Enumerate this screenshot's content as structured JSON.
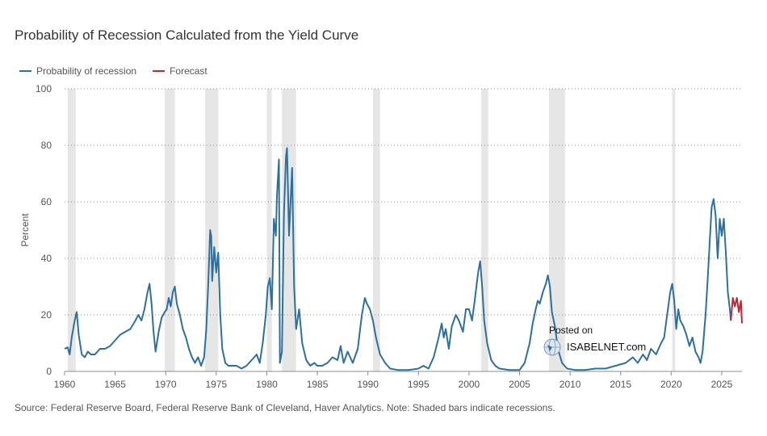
{
  "title": "Probability of Recession Calculated from the Yield Curve",
  "legend": [
    {
      "label": "Probability of recession",
      "color": "#2e6f9e"
    },
    {
      "label": "Forecast",
      "color": "#c1272d"
    }
  ],
  "source": "Source: Federal Reserve Board, Federal Reserve Bank of Cleveland, Haver Analytics. Note: Shaded bars indicate recessions.",
  "watermark": {
    "posted": "Posted on",
    "site": "ISABELNET.com"
  },
  "chart_data": {
    "type": "line",
    "title": "Probability of Recession Calculated from the Yield Curve",
    "ylabel": "Percent",
    "xlabel": "",
    "xlim": [
      1960,
      2027
    ],
    "ylim": [
      0,
      100
    ],
    "yticks": [
      0,
      20,
      40,
      60,
      80,
      100
    ],
    "xticks": [
      1960,
      1965,
      1970,
      1975,
      1980,
      1985,
      1990,
      1995,
      2000,
      2005,
      2010,
      2015,
      2020,
      2025
    ],
    "grid": "horizontal dotted",
    "recessions": [
      [
        1960.3,
        1961.1
      ],
      [
        1969.9,
        1970.9
      ],
      [
        1973.9,
        1975.2
      ],
      [
        1980.0,
        1980.5
      ],
      [
        1981.5,
        1982.9
      ],
      [
        1990.5,
        1991.2
      ],
      [
        2001.2,
        2001.9
      ],
      [
        2007.9,
        2009.5
      ],
      [
        2020.1,
        2020.4
      ]
    ],
    "series": [
      {
        "name": "Probability of recession",
        "color": "#2e6f9e",
        "points": [
          [
            1960.0,
            8
          ],
          [
            1960.3,
            8.5
          ],
          [
            1960.5,
            6
          ],
          [
            1960.7,
            12
          ],
          [
            1961.0,
            18
          ],
          [
            1961.2,
            21
          ],
          [
            1961.4,
            13
          ],
          [
            1961.7,
            6
          ],
          [
            1962.0,
            5
          ],
          [
            1962.3,
            7
          ],
          [
            1962.6,
            6
          ],
          [
            1963.0,
            6
          ],
          [
            1963.5,
            8
          ],
          [
            1964.0,
            8
          ],
          [
            1964.5,
            9
          ],
          [
            1965.0,
            11
          ],
          [
            1965.5,
            13
          ],
          [
            1966.0,
            14
          ],
          [
            1966.5,
            15
          ],
          [
            1967.0,
            18
          ],
          [
            1967.3,
            20
          ],
          [
            1967.6,
            18
          ],
          [
            1967.9,
            22
          ],
          [
            1968.2,
            28
          ],
          [
            1968.4,
            31
          ],
          [
            1968.6,
            24
          ],
          [
            1968.8,
            14
          ],
          [
            1969.0,
            7
          ],
          [
            1969.3,
            14
          ],
          [
            1969.6,
            19
          ],
          [
            1969.9,
            21
          ],
          [
            1970.1,
            22
          ],
          [
            1970.3,
            26
          ],
          [
            1970.5,
            23
          ],
          [
            1970.7,
            28
          ],
          [
            1970.9,
            30
          ],
          [
            1971.1,
            24
          ],
          [
            1971.4,
            20
          ],
          [
            1971.7,
            15
          ],
          [
            1972.0,
            12
          ],
          [
            1972.3,
            8
          ],
          [
            1972.6,
            5
          ],
          [
            1972.9,
            3
          ],
          [
            1973.2,
            5
          ],
          [
            1973.5,
            2
          ],
          [
            1973.8,
            5
          ],
          [
            1974.0,
            14
          ],
          [
            1974.2,
            30
          ],
          [
            1974.4,
            50
          ],
          [
            1974.5,
            48
          ],
          [
            1974.6,
            32
          ],
          [
            1974.8,
            44
          ],
          [
            1975.0,
            35
          ],
          [
            1975.2,
            42
          ],
          [
            1975.4,
            20
          ],
          [
            1975.6,
            8
          ],
          [
            1975.9,
            3
          ],
          [
            1976.2,
            2
          ],
          [
            1976.5,
            2
          ],
          [
            1977.0,
            2
          ],
          [
            1977.5,
            1
          ],
          [
            1978.0,
            2
          ],
          [
            1978.5,
            4
          ],
          [
            1979.0,
            6
          ],
          [
            1979.3,
            3
          ],
          [
            1979.6,
            10
          ],
          [
            1979.9,
            20
          ],
          [
            1980.1,
            30
          ],
          [
            1980.3,
            33
          ],
          [
            1980.5,
            22
          ],
          [
            1980.7,
            54
          ],
          [
            1980.9,
            48
          ],
          [
            1981.0,
            62
          ],
          [
            1981.2,
            75
          ],
          [
            1981.3,
            3
          ],
          [
            1981.5,
            7
          ],
          [
            1981.7,
            56
          ],
          [
            1981.9,
            76
          ],
          [
            1982.0,
            79
          ],
          [
            1982.2,
            48
          ],
          [
            1982.5,
            72
          ],
          [
            1982.7,
            30
          ],
          [
            1982.9,
            15
          ],
          [
            1983.2,
            22
          ],
          [
            1983.5,
            10
          ],
          [
            1983.9,
            4
          ],
          [
            1984.3,
            2
          ],
          [
            1984.7,
            3
          ],
          [
            1985.0,
            2
          ],
          [
            1985.5,
            2
          ],
          [
            1986.0,
            3
          ],
          [
            1986.5,
            5
          ],
          [
            1987.0,
            4
          ],
          [
            1987.3,
            9
          ],
          [
            1987.6,
            3
          ],
          [
            1988.0,
            7
          ],
          [
            1988.5,
            3
          ],
          [
            1989.0,
            8
          ],
          [
            1989.4,
            20
          ],
          [
            1989.7,
            26
          ],
          [
            1989.9,
            24
          ],
          [
            1990.2,
            22
          ],
          [
            1990.5,
            18
          ],
          [
            1990.8,
            12
          ],
          [
            1991.2,
            6
          ],
          [
            1991.7,
            3
          ],
          [
            1992.2,
            1
          ],
          [
            1993.0,
            0.5
          ],
          [
            1994.0,
            0.5
          ],
          [
            1995.0,
            1
          ],
          [
            1995.5,
            2
          ],
          [
            1996.0,
            1
          ],
          [
            1996.5,
            5
          ],
          [
            1997.0,
            12
          ],
          [
            1997.3,
            17
          ],
          [
            1997.5,
            12
          ],
          [
            1997.7,
            15
          ],
          [
            1998.0,
            8
          ],
          [
            1998.3,
            16
          ],
          [
            1998.7,
            20
          ],
          [
            1999.0,
            18
          ],
          [
            1999.4,
            14
          ],
          [
            1999.7,
            22
          ],
          [
            2000.0,
            22
          ],
          [
            2000.3,
            18
          ],
          [
            2000.6,
            26
          ],
          [
            2000.9,
            35
          ],
          [
            2001.1,
            39
          ],
          [
            2001.3,
            30
          ],
          [
            2001.5,
            18
          ],
          [
            2001.8,
            10
          ],
          [
            2002.2,
            4
          ],
          [
            2002.6,
            2
          ],
          [
            2003.0,
            1
          ],
          [
            2004.0,
            0.5
          ],
          [
            2005.0,
            0.5
          ],
          [
            2005.5,
            3
          ],
          [
            2006.0,
            10
          ],
          [
            2006.3,
            17
          ],
          [
            2006.6,
            22
          ],
          [
            2006.8,
            25
          ],
          [
            2007.0,
            24
          ],
          [
            2007.3,
            28
          ],
          [
            2007.6,
            31
          ],
          [
            2007.8,
            34
          ],
          [
            2008.0,
            30
          ],
          [
            2008.2,
            21
          ],
          [
            2008.5,
            16
          ],
          [
            2008.8,
            8
          ],
          [
            2009.2,
            3
          ],
          [
            2009.7,
            1
          ],
          [
            2010.5,
            0.5
          ],
          [
            2011.5,
            0.5
          ],
          [
            2012.5,
            1
          ],
          [
            2013.5,
            1
          ],
          [
            2014.5,
            2
          ],
          [
            2015.5,
            3
          ],
          [
            2016.2,
            5
          ],
          [
            2016.7,
            3
          ],
          [
            2017.2,
            6
          ],
          [
            2017.6,
            4
          ],
          [
            2018.0,
            8
          ],
          [
            2018.5,
            6
          ],
          [
            2019.0,
            10
          ],
          [
            2019.3,
            12
          ],
          [
            2019.6,
            20
          ],
          [
            2019.9,
            28
          ],
          [
            2020.1,
            31
          ],
          [
            2020.3,
            25
          ],
          [
            2020.5,
            15
          ],
          [
            2020.7,
            22
          ],
          [
            2020.9,
            18
          ],
          [
            2021.2,
            16
          ],
          [
            2021.5,
            13
          ],
          [
            2021.8,
            9
          ],
          [
            2022.1,
            12
          ],
          [
            2022.4,
            7
          ],
          [
            2022.7,
            5
          ],
          [
            2022.9,
            3
          ],
          [
            2023.1,
            7
          ],
          [
            2023.4,
            20
          ],
          [
            2023.6,
            32
          ],
          [
            2023.8,
            45
          ],
          [
            2024.0,
            58
          ],
          [
            2024.2,
            61
          ],
          [
            2024.4,
            55
          ],
          [
            2024.6,
            40
          ],
          [
            2024.8,
            54
          ],
          [
            2025.0,
            48
          ],
          [
            2025.2,
            54
          ],
          [
            2025.4,
            42
          ],
          [
            2025.6,
            28
          ],
          [
            2025.8,
            22
          ],
          [
            2025.9,
            18
          ]
        ]
      },
      {
        "name": "Forecast",
        "color": "#c1272d",
        "points": [
          [
            2025.9,
            18
          ],
          [
            2026.1,
            26
          ],
          [
            2026.3,
            23
          ],
          [
            2026.5,
            26
          ],
          [
            2026.7,
            21
          ],
          [
            2026.9,
            25
          ],
          [
            2027.0,
            17
          ]
        ]
      }
    ]
  }
}
